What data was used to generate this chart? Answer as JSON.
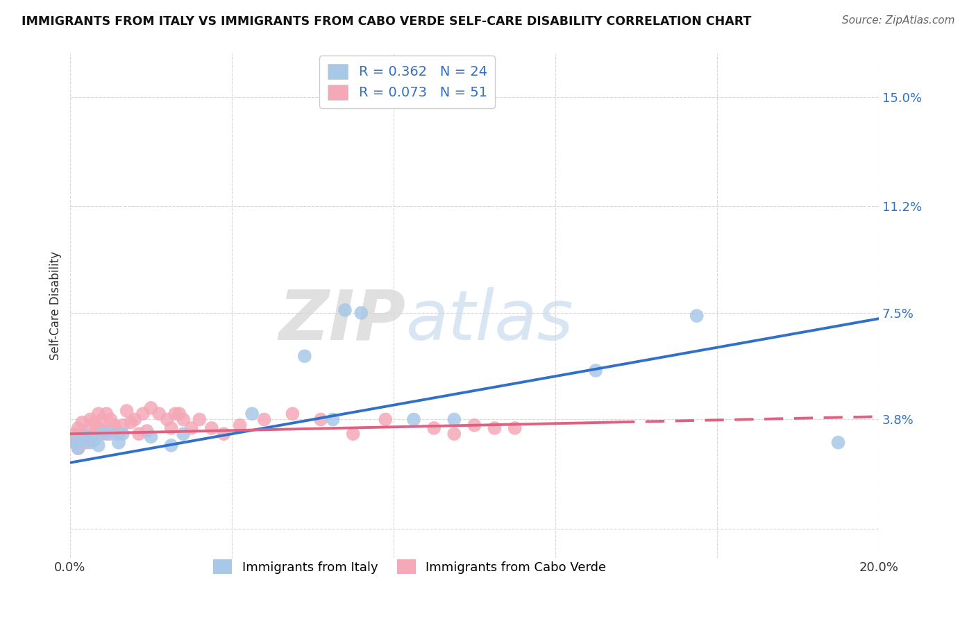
{
  "title": "IMMIGRANTS FROM ITALY VS IMMIGRANTS FROM CABO VERDE SELF-CARE DISABILITY CORRELATION CHART",
  "source": "Source: ZipAtlas.com",
  "ylabel": "Self-Care Disability",
  "xlim": [
    0.0,
    0.2
  ],
  "ylim": [
    -0.01,
    0.165
  ],
  "yticks": [
    0.0,
    0.038,
    0.075,
    0.112,
    0.15
  ],
  "ytick_labels": [
    "",
    "3.8%",
    "7.5%",
    "11.2%",
    "15.0%"
  ],
  "xticks": [
    0.0,
    0.04,
    0.08,
    0.12,
    0.16,
    0.2
  ],
  "xtick_labels": [
    "0.0%",
    "",
    "",
    "",
    "",
    "20.0%"
  ],
  "italy_color": "#a8c8e8",
  "cabo_verde_color": "#f4a8b8",
  "italy_line_color": "#3070c8",
  "cabo_verde_line_color": "#e06080",
  "italy_r": 0.362,
  "italy_n": 24,
  "cabo_verde_r": 0.073,
  "cabo_verde_n": 51,
  "legend_label_italy": "Immigrants from Italy",
  "legend_label_cabo": "Immigrants from Cabo Verde",
  "italy_x": [
    0.001,
    0.002,
    0.003,
    0.004,
    0.005,
    0.006,
    0.007,
    0.008,
    0.01,
    0.012,
    0.013,
    0.02,
    0.025,
    0.028,
    0.045,
    0.058,
    0.065,
    0.068,
    0.072,
    0.085,
    0.095,
    0.13,
    0.155,
    0.19
  ],
  "italy_y": [
    0.03,
    0.028,
    0.031,
    0.032,
    0.03,
    0.031,
    0.029,
    0.033,
    0.033,
    0.03,
    0.033,
    0.032,
    0.029,
    0.033,
    0.04,
    0.06,
    0.038,
    0.076,
    0.075,
    0.038,
    0.038,
    0.055,
    0.074,
    0.03
  ],
  "cabo_x": [
    0.001,
    0.001,
    0.002,
    0.002,
    0.003,
    0.003,
    0.004,
    0.004,
    0.005,
    0.005,
    0.006,
    0.006,
    0.007,
    0.007,
    0.008,
    0.008,
    0.009,
    0.009,
    0.01,
    0.01,
    0.011,
    0.012,
    0.013,
    0.014,
    0.015,
    0.016,
    0.017,
    0.018,
    0.019,
    0.02,
    0.022,
    0.024,
    0.025,
    0.026,
    0.027,
    0.028,
    0.03,
    0.032,
    0.035,
    0.038,
    0.042,
    0.048,
    0.055,
    0.062,
    0.07,
    0.078,
    0.09,
    0.095,
    0.1,
    0.105,
    0.11
  ],
  "cabo_y": [
    0.03,
    0.033,
    0.028,
    0.035,
    0.033,
    0.037,
    0.03,
    0.034,
    0.032,
    0.038,
    0.033,
    0.037,
    0.035,
    0.04,
    0.034,
    0.038,
    0.033,
    0.04,
    0.035,
    0.038,
    0.036,
    0.033,
    0.036,
    0.041,
    0.037,
    0.038,
    0.033,
    0.04,
    0.034,
    0.042,
    0.04,
    0.038,
    0.035,
    0.04,
    0.04,
    0.038,
    0.035,
    0.038,
    0.035,
    0.033,
    0.036,
    0.038,
    0.04,
    0.038,
    0.033,
    0.038,
    0.035,
    0.033,
    0.036,
    0.035,
    0.035
  ],
  "background_color": "#ffffff",
  "grid_color": "#d8d8d8",
  "watermark_zip": "ZIP",
  "watermark_atlas": "atlas",
  "italy_line_x": [
    0.0,
    0.2
  ],
  "italy_line_y": [
    0.023,
    0.073
  ],
  "cabo_line_x": [
    0.0,
    0.2
  ],
  "cabo_line_y": [
    0.033,
    0.039
  ],
  "cabo_line_solid_end": 0.135,
  "cabo_line_dash_start": 0.135,
  "legend_text_color": "#3070c8"
}
